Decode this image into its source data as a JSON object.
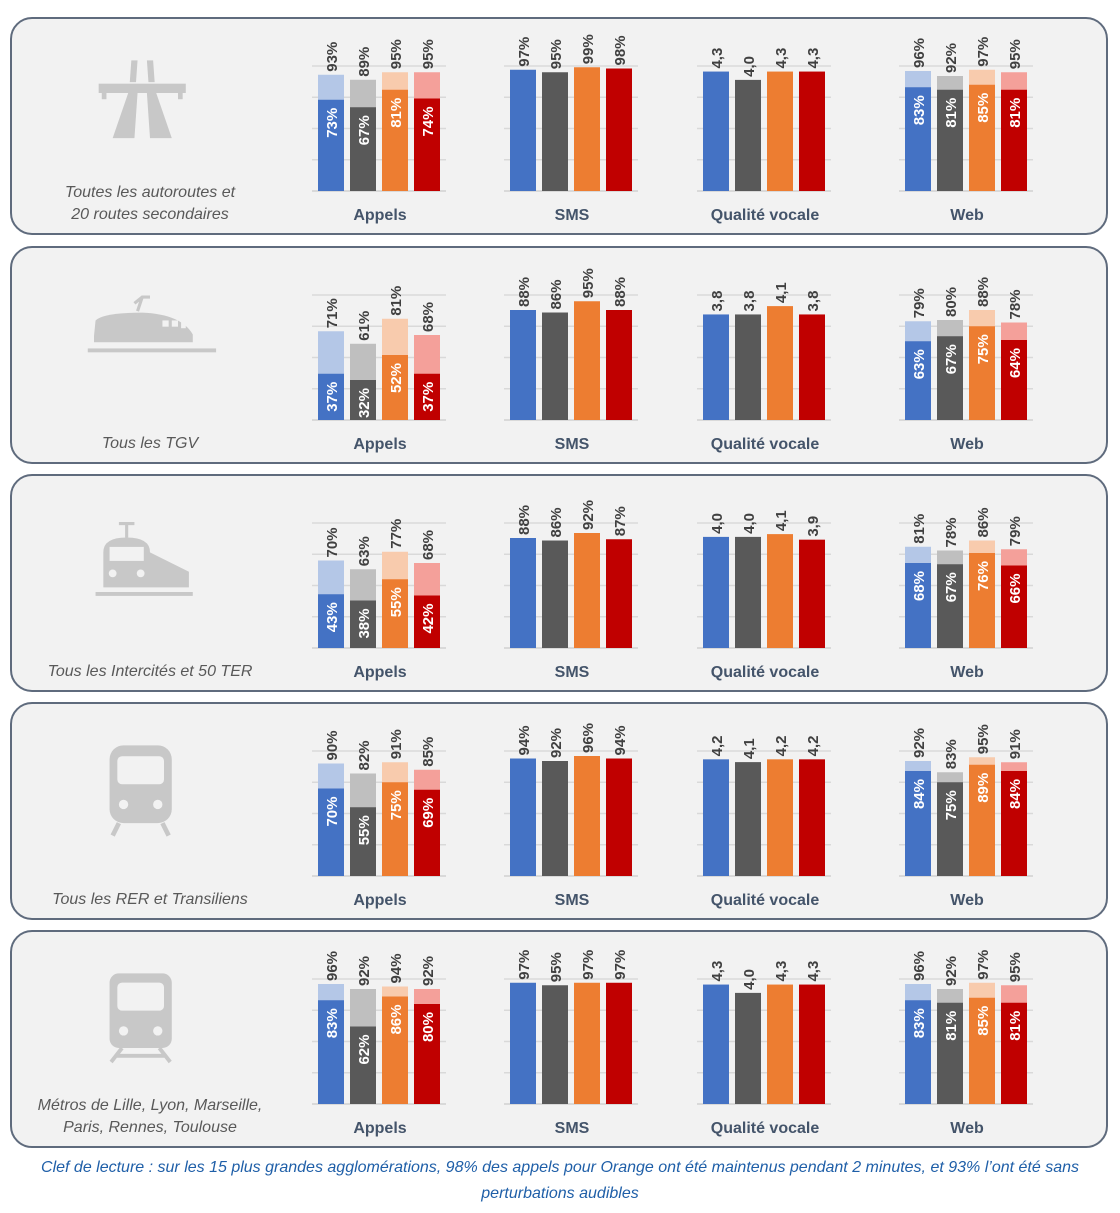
{
  "colors": {
    "orange_like_1": "#4472c4",
    "operator_2": "#595959",
    "operator_3": "#ed7d31",
    "operator_4": "#c00000",
    "light": [
      "#b4c7e7",
      "#bfbfbf",
      "#f8cbad",
      "#f4a09a"
    ],
    "solid": [
      "#4472c4",
      "#595959",
      "#ed7d31",
      "#c00000"
    ]
  },
  "chart_titles": {
    "appels": "Appels",
    "sms": "SMS",
    "qv": "Qualité vocale",
    "web": "Web"
  },
  "caption": "Clef de lecture : sur les 15 plus grandes agglomérations, 98% des appels pour Orange ont été maintenus pendant 2 minutes, et 93% l’ont été sans perturbations audibles",
  "chart_data": [
    {
      "type": "bar",
      "environment_label": [
        "Toutes les autoroutes et",
        "20 routes secondaires"
      ],
      "icon": "highway-icon",
      "appels": {
        "outer": [
          93,
          89,
          95,
          95
        ],
        "inner": [
          73,
          67,
          81,
          74
        ]
      },
      "sms": [
        97,
        95,
        99,
        98
      ],
      "qualite_vocale": [
        4.3,
        4.0,
        4.3,
        4.3
      ],
      "web": {
        "outer": [
          96,
          92,
          97,
          95
        ],
        "inner": [
          83,
          81,
          85,
          81
        ]
      }
    },
    {
      "type": "bar",
      "environment_label": [
        "Tous les TGV"
      ],
      "icon": "tgv-icon",
      "appels": {
        "outer": [
          71,
          61,
          81,
          68
        ],
        "inner": [
          37,
          32,
          52,
          37
        ]
      },
      "sms": [
        88,
        86,
        95,
        88
      ],
      "qualite_vocale": [
        3.8,
        3.8,
        4.1,
        3.8
      ],
      "web": {
        "outer": [
          79,
          80,
          88,
          78
        ],
        "inner": [
          63,
          67,
          75,
          64
        ]
      }
    },
    {
      "type": "bar",
      "environment_label": [
        "Tous les Intercités et 50 TER"
      ],
      "icon": "train-icon",
      "appels": {
        "outer": [
          70,
          63,
          77,
          68
        ],
        "inner": [
          43,
          38,
          55,
          42
        ]
      },
      "sms": [
        88,
        86,
        92,
        87
      ],
      "qualite_vocale": [
        4.0,
        4.0,
        4.1,
        3.9
      ],
      "web": {
        "outer": [
          81,
          78,
          86,
          79
        ],
        "inner": [
          68,
          67,
          76,
          66
        ]
      }
    },
    {
      "type": "bar",
      "environment_label": [
        "Tous les RER et Transiliens"
      ],
      "icon": "rer-icon",
      "appels": {
        "outer": [
          90,
          82,
          91,
          85
        ],
        "inner": [
          70,
          55,
          75,
          69
        ]
      },
      "sms": [
        94,
        92,
        96,
        94
      ],
      "qualite_vocale": [
        4.2,
        4.1,
        4.2,
        4.2
      ],
      "web": {
        "outer": [
          92,
          83,
          95,
          91
        ],
        "inner": [
          84,
          75,
          89,
          84
        ]
      }
    },
    {
      "type": "bar",
      "environment_label": [
        "Métros de Lille, Lyon, Marseille,",
        "Paris, Rennes, Toulouse"
      ],
      "icon": "metro-icon",
      "appels": {
        "outer": [
          96,
          92,
          94,
          92
        ],
        "inner": [
          83,
          62,
          86,
          80
        ]
      },
      "sms": [
        97,
        95,
        97,
        97
      ],
      "qualite_vocale": [
        4.3,
        4.0,
        4.3,
        4.3
      ],
      "web": {
        "outer": [
          96,
          92,
          97,
          95
        ],
        "inner": [
          83,
          81,
          85,
          81
        ]
      }
    }
  ]
}
